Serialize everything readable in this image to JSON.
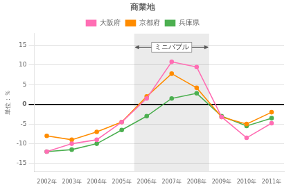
{
  "chart_data": {
    "type": "line",
    "title": "商業地",
    "ylabel": "単位：％",
    "x": [
      2002,
      2003,
      2004,
      2005,
      2006,
      2007,
      2008,
      2009,
      2010,
      2011
    ],
    "series": [
      {
        "name": "大阪府",
        "color": "#FF6EB4",
        "marker": "circle",
        "values": [
          -12,
          -10,
          -9,
          -4.5,
          1.5,
          10.8,
          9.5,
          -3.2,
          -8.5,
          -4.8
        ]
      },
      {
        "name": "京都府",
        "color": "#FF8C00",
        "marker": "circle",
        "values": [
          -8,
          -9,
          -7,
          -4.5,
          2.0,
          7.8,
          4.2,
          -3.2,
          -5.0,
          -2.0
        ]
      },
      {
        "name": "兵庫県",
        "color": "#4CAF50",
        "marker": "circle",
        "values": [
          -12,
          -11.5,
          -10,
          -6.5,
          -3.0,
          1.5,
          2.8,
          -3.0,
          -5.5,
          -3.5
        ]
      }
    ],
    "xlim": [
      2001.5,
      2011.5
    ],
    "xticks": [
      {
        "value": 2002,
        "label": "2002年"
      },
      {
        "value": 2003,
        "label": "2003年"
      },
      {
        "value": 2004,
        "label": "2004年"
      },
      {
        "value": 2005,
        "label": "2005年"
      },
      {
        "value": 2006,
        "label": "2006年"
      },
      {
        "value": 2007,
        "label": "2007年"
      },
      {
        "value": 2008,
        "label": "2008年"
      },
      {
        "value": 2009,
        "label": "2009年"
      },
      {
        "value": 2010,
        "label": "2010年"
      },
      {
        "value": 2011,
        "label": "2011年"
      }
    ],
    "ylim": [
      -17,
      18
    ],
    "yticks": [
      -15,
      -10,
      -5,
      0,
      5,
      10,
      15
    ],
    "grid": true,
    "legend": "top",
    "annotations": [
      {
        "text": "ミニバブル",
        "x": [
          2005.5,
          2008.5
        ],
        "y": 14.5
      }
    ]
  }
}
